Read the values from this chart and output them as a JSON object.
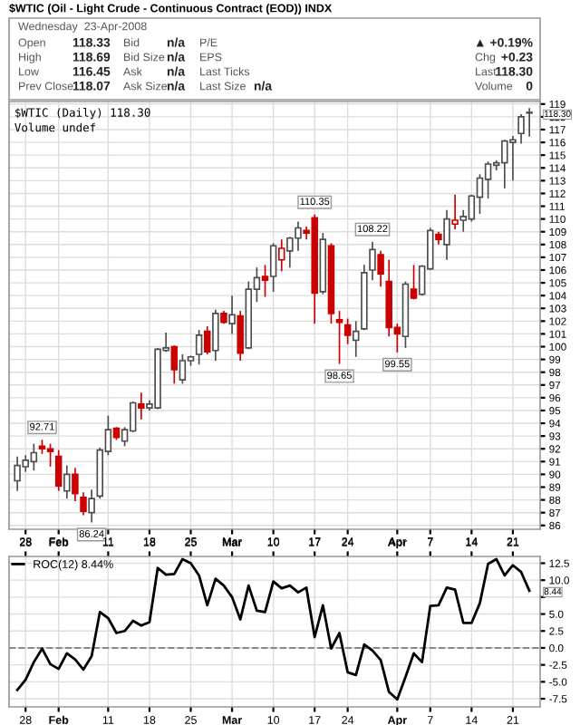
{
  "chart_data": [
    {
      "type": "candlestick",
      "title": "$WTIC (Oil - Light Crude - Continuous Contract (EOD)) INDX",
      "categories": [
        null,
        "28",
        null,
        null,
        null,
        "Feb",
        null,
        null,
        null,
        null,
        null,
        "11",
        null,
        null,
        null,
        null,
        "18",
        null,
        null,
        null,
        null,
        "25",
        null,
        null,
        null,
        null,
        "Mar",
        null,
        null,
        null,
        null,
        "10",
        null,
        null,
        null,
        null,
        "17",
        null,
        null,
        null,
        "24",
        null,
        null,
        null,
        null,
        null,
        "Apr",
        null,
        null,
        null,
        "7",
        null,
        null,
        null,
        null,
        "14",
        null,
        null,
        null,
        null,
        "21",
        null,
        null
      ],
      "ohlc": [
        [
          89.5,
          91.4,
          88.7,
          90.7
        ],
        [
          90.6,
          91.5,
          90.2,
          91.1
        ],
        [
          91.0,
          92.4,
          90.3,
          91.7
        ],
        [
          92.2,
          92.71,
          91.6,
          92.0
        ],
        [
          92.0,
          92.4,
          90.6,
          91.8
        ],
        [
          91.4,
          91.9,
          88.7,
          89.1
        ],
        [
          88.7,
          90.7,
          88.1,
          90.0
        ],
        [
          90.0,
          90.5,
          87.9,
          88.5
        ],
        [
          88.2,
          88.6,
          86.8,
          87.1
        ],
        [
          87.0,
          88.8,
          86.24,
          88.1
        ],
        [
          88.3,
          92.1,
          88.1,
          91.9
        ],
        [
          91.8,
          94.6,
          91.5,
          93.5
        ],
        [
          93.6,
          93.7,
          92.7,
          92.9
        ],
        [
          92.6,
          93.7,
          92.2,
          93.5
        ],
        [
          93.4,
          95.7,
          93.3,
          95.6
        ],
        [
          95.5,
          96.4,
          94.3,
          95.2
        ],
        [
          95.2,
          95.8,
          95.0,
          95.5
        ],
        [
          95.2,
          99.9,
          95.1,
          99.8
        ],
        [
          99.7,
          101.1,
          99.6,
          99.9
        ],
        [
          100.0,
          100.1,
          97.1,
          98.2
        ],
        [
          97.4,
          99.4,
          97.1,
          98.9
        ],
        [
          98.9,
          99.3,
          98.5,
          99.2
        ],
        [
          99.4,
          101.3,
          98.6,
          100.9
        ],
        [
          101.2,
          101.6,
          99.4,
          99.6
        ],
        [
          99.7,
          102.9,
          98.9,
          102.6
        ],
        [
          102.6,
          102.8,
          101.8,
          101.9
        ],
        [
          101.8,
          104.0,
          101.0,
          102.5
        ],
        [
          102.4,
          102.8,
          98.9,
          99.5
        ],
        [
          99.9,
          105.1,
          99.8,
          104.5
        ],
        [
          104.5,
          106.2,
          103.5,
          105.4
        ],
        [
          105.5,
          106.4,
          103.9,
          105.2
        ],
        [
          105.5,
          108.1,
          104.3,
          107.9
        ],
        [
          106.8,
          108.4,
          105.9,
          107.7
        ],
        [
          107.5,
          108.6,
          106.2,
          108.5
        ],
        [
          108.5,
          109.8,
          107.5,
          109.3
        ],
        [
          109.1,
          109.4,
          108.4,
          108.9
        ],
        [
          110.1,
          110.35,
          101.8,
          104.2
        ],
        [
          104.3,
          108.9,
          104.1,
          108.4
        ],
        [
          107.9,
          108.1,
          101.8,
          102.6
        ],
        [
          102.1,
          102.8,
          98.65,
          101.9
        ],
        [
          101.7,
          102.2,
          100.2,
          100.9
        ],
        [
          100.5,
          102.0,
          99.2,
          101.2
        ],
        [
          101.4,
          106.4,
          101.3,
          105.8
        ],
        [
          106.0,
          108.22,
          105.2,
          107.6
        ],
        [
          107.2,
          107.5,
          104.7,
          105.7
        ],
        [
          105.1,
          106.8,
          100.8,
          101.5
        ],
        [
          101.5,
          101.8,
          99.55,
          101.0
        ],
        [
          100.8,
          105.1,
          99.9,
          104.9
        ],
        [
          104.5,
          106.4,
          103.7,
          103.8
        ],
        [
          104.1,
          106.4,
          104.0,
          106.3
        ],
        [
          106.1,
          109.3,
          106.0,
          109.1
        ],
        [
          108.8,
          109.0,
          108.0,
          108.4
        ],
        [
          108.0,
          110.7,
          106.8,
          110.0
        ],
        [
          109.6,
          111.9,
          109.2,
          109.9
        ],
        [
          109.9,
          110.7,
          109.0,
          110.2
        ],
        [
          110.0,
          111.9,
          109.8,
          111.8
        ],
        [
          111.7,
          113.5,
          110.4,
          113.2
        ],
        [
          113.1,
          114.5,
          111.6,
          114.3
        ],
        [
          114.2,
          114.6,
          113.8,
          114.4
        ],
        [
          114.4,
          116.2,
          112.4,
          116.1
        ],
        [
          116.0,
          116.5,
          113.0,
          116.2
        ],
        [
          116.7,
          118.2,
          115.9,
          118.0
        ],
        [
          118.33,
          118.69,
          116.45,
          118.3
        ]
      ],
      "colors": [
        "#4d4d4d",
        "#4d4d4d",
        "#4d4d4d",
        "#cc0000",
        "#cc0000",
        "#cc0000",
        "#4d4d4d",
        "#cc0000",
        "#cc0000",
        "#4d4d4d",
        "#4d4d4d",
        "#4d4d4d",
        "#cc0000",
        "#4d4d4d",
        "#4d4d4d",
        "#cc0000",
        "#4d4d4d",
        "#4d4d4d",
        "#4d4d4d",
        "#cc0000",
        "#4d4d4d",
        "#4d4d4d",
        "#4d4d4d",
        "#cc0000",
        "#4d4d4d",
        "#cc0000",
        "#4d4d4d",
        "#cc0000",
        "#4d4d4d",
        "#4d4d4d",
        "#cc0000",
        "#4d4d4d",
        "#cc0000",
        "#4d4d4d",
        "#4d4d4d",
        "#cc0000",
        "#cc0000",
        "#4d4d4d",
        "#cc0000",
        "#cc0000",
        "#cc0000",
        "#4d4d4d",
        "#4d4d4d",
        "#4d4d4d",
        "#cc0000",
        "#cc0000",
        "#cc0000",
        "#4d4d4d",
        "#cc0000",
        "#4d4d4d",
        "#4d4d4d",
        "#cc0000",
        "#4d4d4d",
        "#cc0000",
        "#4d4d4d",
        "#4d4d4d",
        "#4d4d4d",
        "#4d4d4d",
        "#4d4d4d",
        "#4d4d4d",
        "#4d4d4d",
        "#4d4d4d",
        "#4d4d4d"
      ],
      "ylim": [
        85.7,
        119.2
      ],
      "yticks": [
        86,
        87,
        88,
        89,
        90,
        91,
        92,
        93,
        94,
        95,
        96,
        97,
        98,
        99,
        100,
        101,
        102,
        103,
        104,
        105,
        106,
        107,
        108,
        109,
        110,
        111,
        112,
        113,
        114,
        115,
        116,
        117,
        118,
        119
      ],
      "grid": true,
      "annotations": [
        "Wednesday  23-Apr-2008",
        "Open",
        "118.33",
        "High",
        "118.69",
        "Low",
        "116.45",
        "Prev Close",
        "118.07",
        "Bid",
        "n/a",
        "Bid Size",
        "n/a",
        "Ask",
        "n/a",
        "Ask Size",
        "n/a",
        "P/E",
        "EPS",
        "Last Ticks",
        "Last Size",
        "n/a",
        "▲ +0.19%",
        "Chg",
        "+0.23",
        "Last",
        "118.30",
        "Volume",
        "0",
        "$WTIC (Daily) 118.30",
        "Volume undef",
        {
          "text": "92.71",
          "y": 92.71
        },
        {
          "text": "86.24",
          "y": 86.24
        },
        {
          "text": "110.35",
          "y": 110.35
        },
        {
          "text": "98.65",
          "y": 98.65
        },
        {
          "text": "108.22",
          "y": 108.22
        },
        {
          "text": "99.55",
          "y": 99.55
        },
        {
          "text": "118.30",
          "y": 118.3
        }
      ]
    },
    {
      "type": "line",
      "categories": [
        null,
        "28",
        null,
        null,
        null,
        "Feb",
        null,
        null,
        null,
        null,
        null,
        "11",
        null,
        null,
        null,
        null,
        "18",
        null,
        null,
        null,
        null,
        "25",
        null,
        null,
        null,
        null,
        "Mar",
        null,
        null,
        null,
        null,
        "10",
        null,
        null,
        null,
        null,
        "17",
        null,
        null,
        null,
        "24",
        null,
        null,
        null,
        null,
        null,
        "Apr",
        null,
        null,
        null,
        "7",
        null,
        null,
        null,
        null,
        "14",
        null,
        null,
        null,
        null,
        "21",
        null,
        null
      ],
      "series": [
        {
          "name": "ROC(12) 8.44%",
          "color": "#000000",
          "values": [
            -6.2,
            -4.7,
            -2.1,
            -0.1,
            -2.4,
            -3.1,
            -0.8,
            -1.7,
            -3.2,
            -1.2,
            5.3,
            4.4,
            2.2,
            2.5,
            4.0,
            3.3,
            3.8,
            11.8,
            10.8,
            10.9,
            13.1,
            12.5,
            10.7,
            6.3,
            10.2,
            9.2,
            7.5,
            4.2,
            9.2,
            5.5,
            5.3,
            9.8,
            8.8,
            9.2,
            8.2,
            8.9,
            1.6,
            6.3,
            -0.1,
            2.2,
            -3.6,
            -4.0,
            0.5,
            -0.4,
            -1.8,
            -6.5,
            -7.6,
            -4.3,
            -0.8,
            -2.1,
            6.2,
            6.3,
            8.9,
            8.6,
            3.7,
            3.7,
            6.6,
            12.4,
            13.1,
            10.7,
            12.2,
            11.2,
            8.44
          ]
        }
      ],
      "ylim": [
        -8.7,
        13.5
      ],
      "yticks": [
        {
          "value": -7.5,
          "label": "-7.5"
        },
        {
          "value": -5,
          "label": "-5.0"
        },
        {
          "value": -2.5,
          "label": "-2.5"
        },
        {
          "value": 0,
          "label": "0.0"
        },
        2.5,
        {
          "value": 5,
          "label": "5.0"
        },
        {
          "value": 7.5,
          "label": null
        },
        {
          "value": 10,
          "label": "10.0"
        },
        12.5
      ],
      "ref_lines": [
        {
          "axis": "y",
          "value": 0,
          "color": "#888888",
          "line_style": "dashed"
        }
      ],
      "grid": true,
      "legend": "top left",
      "annotations": [
        {
          "text": "8.44",
          "y": 8.44
        }
      ]
    }
  ]
}
